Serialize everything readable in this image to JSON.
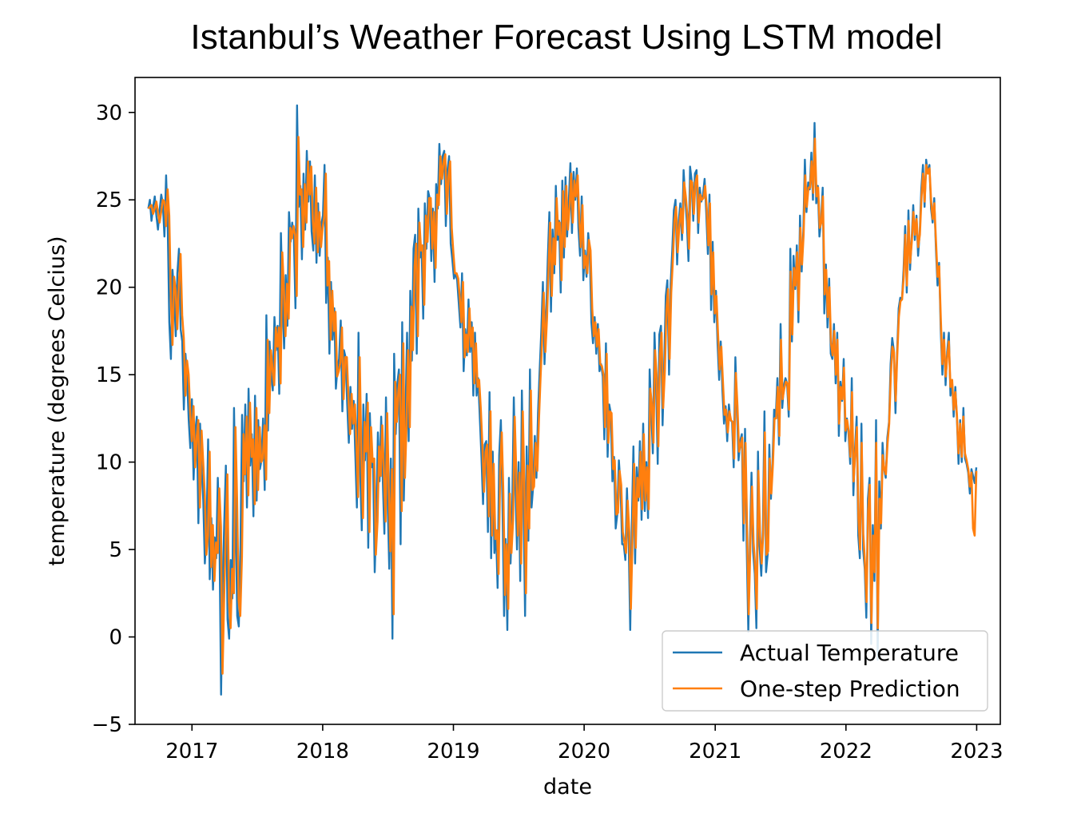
{
  "chart_data": {
    "type": "line",
    "title": "Istanbul’s Weather Forecast Using LSTM model",
    "xlabel": "date",
    "ylabel": "temperature (degrees Celcius)",
    "x_ticks": [
      "2017",
      "2018",
      "2019",
      "2020",
      "2021",
      "2022",
      "2023"
    ],
    "y_ticks": [
      -5,
      0,
      5,
      10,
      15,
      20,
      25,
      30
    ],
    "xlim": [
      "2016-07-26",
      "2023-03-08"
    ],
    "ylim": [
      -5,
      32
    ],
    "grid": false,
    "legend_position": "lower right",
    "x_start": "2016-09-01",
    "x_end": "2022-12-31",
    "series": [
      {
        "name": "Actual Temperature",
        "color": "#1f77b4",
        "values": [
          24.5,
          25.0,
          23.8,
          24.6,
          25.2,
          24.1,
          23.3,
          24.4,
          25.3,
          24.8,
          22.9,
          26.4,
          23.6,
          18.0,
          15.9,
          21.0,
          19.5,
          17.2,
          20.8,
          22.2,
          17.6,
          16.9,
          13.0,
          16.2,
          14.8,
          12.4,
          10.8,
          13.6,
          9.0,
          11.7,
          12.6,
          6.5,
          12.2,
          9.6,
          7.8,
          4.2,
          6.1,
          11.3,
          3.3,
          6.8,
          2.7,
          5.7,
          4.5,
          9.1,
          6.0,
          -3.3,
          3.0,
          6.6,
          9.8,
          1.0,
          -0.1,
          4.4,
          2.2,
          13.1,
          7.3,
          1.2,
          0.6,
          5.2,
          12.7,
          8.9,
          13.3,
          7.4,
          14.2,
          9.8,
          11.6,
          6.9,
          13.8,
          7.8,
          12.4,
          9.6,
          10.1,
          12.5,
          8.4,
          18.4,
          11.8,
          16.9,
          15.0,
          14.1,
          18.3,
          16.4,
          17.8,
          13.9,
          23.1,
          19.3,
          16.5,
          20.7,
          17.8,
          24.3,
          22.6,
          23.7,
          22.9,
          18.8,
          30.4,
          24.6,
          25.8,
          21.6,
          26.5,
          23.3,
          27.8,
          24.9,
          27.2,
          23.2,
          22.1,
          26.4,
          21.4,
          24.8,
          21.8,
          23.6,
          24.1,
          27.0,
          19.1,
          21.7,
          16.2,
          20.3,
          17.0,
          18.8,
          14.2,
          15.4,
          15.9,
          18.1,
          12.9,
          16.4,
          16.0,
          13.3,
          11.1,
          14.3,
          11.9,
          13.5,
          10.5,
          7.4,
          17.4,
          9.6,
          6.1,
          13.3,
          10.1,
          13.9,
          5.1,
          12.8,
          9.7,
          10.2,
          3.7,
          6.9,
          11.7,
          8.9,
          12.6,
          9.0,
          5.9,
          13.7,
          7.8,
          3.9,
          10.2,
          -0.1,
          16.2,
          11.6,
          14.5,
          15.3,
          5.3,
          18.0,
          7.8,
          12.4,
          17.4,
          11.2,
          19.8,
          15.8,
          22.2,
          23.0,
          16.2,
          24.5,
          21.7,
          22.3,
          18.2,
          24.8,
          22.2,
          25.5,
          25.1,
          21.5,
          24.5,
          20.3,
          25.9,
          24.5,
          28.2,
          25.9,
          27.5,
          27.8,
          23.5,
          26.7,
          27.5,
          22.5,
          21.6,
          20.5,
          20.8,
          20.4,
          19.1,
          17.7,
          20.8,
          15.2,
          17.6,
          16.1,
          19.3,
          16.3,
          18.0,
          13.8,
          17.4,
          13.8,
          14.8,
          12.6,
          10.3,
          7.6,
          11.0,
          11.2,
          6.0,
          14.0,
          4.5,
          10.6,
          4.8,
          6.1,
          2.8,
          10.4,
          12.4,
          7.7,
          1.2,
          5.6,
          0.4,
          9.1,
          4.2,
          7.1,
          13.7,
          8.7,
          5.0,
          10.0,
          3.2,
          14.1,
          7.8,
          1.2,
          10.9,
          5.5,
          15.3,
          7.4,
          8.6,
          11.5,
          9.1,
          12.8,
          15.2,
          17.5,
          20.3,
          15.6,
          18.3,
          21.6,
          24.3,
          18.6,
          23.3,
          20.8,
          25.8,
          22.7,
          23.8,
          19.7,
          26.1,
          21.7,
          26.3,
          22.9,
          24.9,
          27.1,
          23.1,
          26.6,
          25.0,
          26.8,
          23.4,
          21.8,
          25.2,
          20.4,
          22.1,
          20.6,
          23.1,
          22.0,
          18.0,
          16.8,
          18.3,
          16.2,
          17.9,
          15.2,
          15.6,
          14.9,
          11.3,
          16.8,
          10.3,
          13.3,
          12.8,
          8.9,
          10.3,
          6.2,
          7.0,
          10.1,
          8.7,
          5.3,
          5.3,
          4.4,
          8.5,
          5.7,
          0.4,
          6.4,
          10.9,
          4.2,
          9.7,
          7.8,
          11.2,
          6.7,
          12.2,
          7.2,
          10.0,
          6.8,
          15.3,
          13.1,
          10.5,
          17.4,
          14.5,
          9.9,
          17.3,
          17.8,
          12.1,
          15.5,
          19.5,
          20.4,
          15.0,
          20.2,
          22.1,
          24.4,
          25.0,
          21.3,
          23.8,
          24.8,
          22.7,
          26.7,
          25.1,
          23.8,
          21.5,
          26.9,
          26.1,
          23.8,
          26.5,
          26.7,
          23.1,
          25.7,
          24.9,
          25.3,
          26.2,
          24.3,
          21.9,
          25.3,
          18.7,
          22.6,
          18.0,
          19.8,
          16.8,
          14.7,
          16.9,
          14.1,
          12.2,
          13.2,
          11.2,
          13.3,
          12.4,
          12.3,
          9.7,
          16.0,
          13.0,
          10.1,
          11.2,
          11.6,
          5.5,
          11.9,
          5.4,
          0.3,
          5.4,
          9.4,
          4.9,
          3.6,
          0.5,
          10.6,
          5.2,
          3.5,
          6.1,
          12.9,
          3.7,
          4.7,
          11.0,
          7.9,
          10.0,
          13.0,
          12.6,
          14.8,
          11.0,
          17.9,
          13.1,
          14.4,
          14.8,
          14.5,
          12.6,
          22.2,
          16.9,
          21.8,
          19.9,
          22.4,
          18.0,
          24.1,
          20.9,
          23.2,
          27.3,
          24.3,
          26.0,
          25.6,
          27.7,
          25.0,
          29.4,
          24.8,
          25.8,
          22.9,
          23.8,
          25.7,
          18.5,
          21.3,
          17.7,
          20.5,
          16.2,
          15.9,
          17.9,
          14.5,
          17.4,
          11.5,
          14.6,
          13.5,
          15.9,
          11.2,
          12.5,
          11.6,
          9.9,
          14.8,
          8.1,
          10.8,
          12.6,
          5.8,
          4.5,
          12.2,
          5.0,
          3.9,
          1.1,
          7.9,
          9.1,
          -0.4,
          6.4,
          3.2,
          12.4,
          -1.3,
          8.9,
          6.2,
          11.1,
          9.6,
          9.1,
          11.4,
          12.3,
          15.6,
          17.1,
          16.4,
          12.8,
          16.3,
          18.8,
          19.4,
          19.3,
          21.0,
          23.5,
          19.7,
          24.4,
          21.0,
          22.7,
          24.7,
          22.7,
          24.1,
          21.8,
          23.1,
          25.6,
          27.0,
          24.6,
          27.3,
          26.5,
          27.0,
          24.5,
          23.7,
          25.1,
          22.2,
          20.1,
          21.4,
          17.6,
          15.0,
          17.4,
          14.4,
          16.3,
          17.4,
          13.8,
          14.7,
          12.6,
          14.3,
          12.5,
          9.9,
          12.4,
          10.0,
          13.1,
          10.2,
          9.9,
          9.4,
          8.2,
          9.6,
          9.2,
          8.8,
          9.7
        ]
      },
      {
        "name": "One-step Prediction",
        "color": "#ff7f0e",
        "values": [
          24.5,
          24.6,
          24.7,
          24.2,
          24.5,
          24.9,
          24.3,
          23.7,
          24.3,
          25.0,
          24.9,
          23.5,
          25.6,
          24.1,
          19.3,
          16.7,
          20.6,
          19.8,
          17.6,
          20.3,
          21.9,
          18.4,
          17.1,
          13.8,
          15.8,
          15.0,
          12.8,
          11.2,
          13.2,
          9.7,
          11.4,
          12.4,
          7.4,
          11.8,
          10.0,
          8.1,
          4.7,
          5.8,
          10.6,
          4.0,
          6.4,
          3.2,
          5.4,
          4.8,
          8.5,
          6.3,
          -2.1,
          2.2,
          5.9,
          9.3,
          2.0,
          0.5,
          3.9,
          2.5,
          12.0,
          7.9,
          2.1,
          1.2,
          4.6,
          11.6,
          9.3,
          12.6,
          8.1,
          13.4,
          10.3,
          11.3,
          7.6,
          13.1,
          8.4,
          12.0,
          10.0,
          10.2,
          12.1,
          9.0,
          17.0,
          12.8,
          16.4,
          15.3,
          14.4,
          17.7,
          16.6,
          17.7,
          14.5,
          22.0,
          19.9,
          17.2,
          20.2,
          18.2,
          23.4,
          22.8,
          23.5,
          23.0,
          19.5,
          28.6,
          25.3,
          25.6,
          22.3,
          25.9,
          23.7,
          27.2,
          25.3,
          26.9,
          23.8,
          22.5,
          25.7,
          22.0,
          24.3,
          22.3,
          23.4,
          24.0,
          26.5,
          20.1,
          21.5,
          17.0,
          19.8,
          17.5,
          18.6,
          14.9,
          15.2,
          15.7,
          17.7,
          13.6,
          16.0,
          16.0,
          13.7,
          11.6,
          13.9,
          12.2,
          13.3,
          10.9,
          8.0,
          16.0,
          10.3,
          6.8,
          12.3,
          10.6,
          13.4,
          6.0,
          12.0,
          10.0,
          10.2,
          4.7,
          6.6,
          10.9,
          9.2,
          12.1,
          9.4,
          6.6,
          12.8,
          8.5,
          4.9,
          9.6,
          1.3,
          14.6,
          12.3,
          14.1,
          15.0,
          7.2,
          16.8,
          9.1,
          12.1,
          16.4,
          12.0,
          18.9,
          16.4,
          21.2,
          22.5,
          17.2,
          23.7,
          22.1,
          22.4,
          19.0,
          24.1,
          22.6,
          25.1,
          25.1,
          22.2,
          24.3,
          21.1,
          25.3,
          24.7,
          27.5,
          26.2,
          27.2,
          27.6,
          24.2,
          26.3,
          27.2,
          23.4,
          22.0,
          20.8,
          20.8,
          20.5,
          19.4,
          18.0,
          20.3,
          16.0,
          17.3,
          16.3,
          18.8,
          16.6,
          17.7,
          14.5,
          16.8,
          14.3,
          14.7,
          13.0,
          10.9,
          8.3,
          10.6,
          11.0,
          6.9,
          12.9,
          5.8,
          9.9,
          5.6,
          6.1,
          3.6,
          9.5,
          11.7,
          8.2,
          2.4,
          5.3,
          1.6,
          8.2,
          4.8,
          6.7,
          12.6,
          9.3,
          5.8,
          9.4,
          4.2,
          12.9,
          8.6,
          2.5,
          9.8,
          6.2,
          14.1,
          8.4,
          8.6,
          11.1,
          9.5,
          12.4,
          14.8,
          17.0,
          19.7,
          16.3,
          18.2,
          21.1,
          23.7,
          19.5,
          22.8,
          21.3,
          25.1,
          23.0,
          23.7,
          20.4,
          25.5,
          22.3,
          25.8,
          23.3,
          24.6,
          26.5,
          23.7,
          26.1,
          25.2,
          26.4,
          23.9,
          22.3,
          24.7,
          21.1,
          21.8,
          20.8,
          22.7,
          22.1,
          18.8,
          17.2,
          18.0,
          16.6,
          17.6,
          15.6,
          15.5,
          15.0,
          12.0,
          16.2,
          11.1,
          12.9,
          12.8,
          9.6,
          10.1,
          7.0,
          7.1,
          9.5,
          8.7,
          6.0,
          5.4,
          4.8,
          7.8,
          6.0,
          1.6,
          5.8,
          9.9,
          5.1,
          9.1,
          8.0,
          10.6,
          7.3,
          11.6,
          7.8,
          9.7,
          7.3,
          14.2,
          13.3,
          11.1,
          16.4,
          14.8,
          10.9,
          16.2,
          17.4,
          13.1,
          15.2,
          18.7,
          19.9,
          15.9,
          19.7,
          21.6,
          23.8,
          24.6,
          22.0,
          23.5,
          24.5,
          23.1,
          26.0,
          25.2,
          24.1,
          22.2,
          26.1,
          26.0,
          24.2,
          26.0,
          26.4,
          23.7,
          25.3,
          25.0,
          25.1,
          25.8,
          24.5,
          22.4,
          24.8,
          19.6,
          22.0,
          18.5,
          19.5,
          17.3,
          15.3,
          16.6,
          14.6,
          12.7,
          13.0,
          11.7,
          12.9,
          12.4,
          12.3,
          10.2,
          15.1,
          13.2,
          10.6,
          11.0,
          11.4,
          6.5,
          11.1,
          6.1,
          1.3,
          5.2,
          8.6,
          5.4,
          4.0,
          1.6,
          9.5,
          5.8,
          4.2,
          5.9,
          11.7,
          4.7,
          4.9,
          10.2,
          8.2,
          9.9,
          12.5,
          12.5,
          14.3,
          11.5,
          17.0,
          13.6,
          14.2,
          14.6,
          14.5,
          13.0,
          20.9,
          17.3,
          21.1,
          20.1,
          22.0,
          18.7,
          23.4,
          21.3,
          23.0,
          26.4,
          24.6,
          25.7,
          25.7,
          27.2,
          25.4,
          28.5,
          25.2,
          25.7,
          23.4,
          23.7,
          25.2,
          19.6,
          21.0,
          18.3,
          20.0,
          16.8,
          16.1,
          17.5,
          15.0,
          17.0,
          12.2,
          14.3,
          13.6,
          15.4,
          11.8,
          12.4,
          11.7,
          10.3,
          14.0,
          8.9,
          10.5,
          12.0,
          6.8,
          5.0,
          11.1,
          5.9,
          4.2,
          2.0,
          7.2,
          8.7,
          0.8,
          5.8,
          3.7,
          11.1,
          0.5,
          7.9,
          6.5,
          10.4,
          9.6,
          9.3,
          11.1,
          12.2,
          14.9,
          16.6,
          16.3,
          13.5,
          16.1,
          18.3,
          19.2,
          19.3,
          20.6,
          23.0,
          20.1,
          23.8,
          21.4,
          22.6,
          24.3,
          23.0,
          23.9,
          22.3,
          23.0,
          25.1,
          26.5,
          24.9,
          27.0,
          26.5,
          26.8,
          24.9,
          23.9,
          24.8,
          22.6,
          20.6,
          21.2,
          18.2,
          15.6,
          17.0,
          14.9,
          16.0,
          16.9,
          14.3,
          14.7,
          13.0,
          14.0,
          12.7,
          10.5,
          12.2,
          10.3,
          12.6,
          10.5,
          10.1,
          9.6,
          8.6,
          9.4,
          6.2,
          5.8,
          9.5
        ]
      }
    ]
  }
}
